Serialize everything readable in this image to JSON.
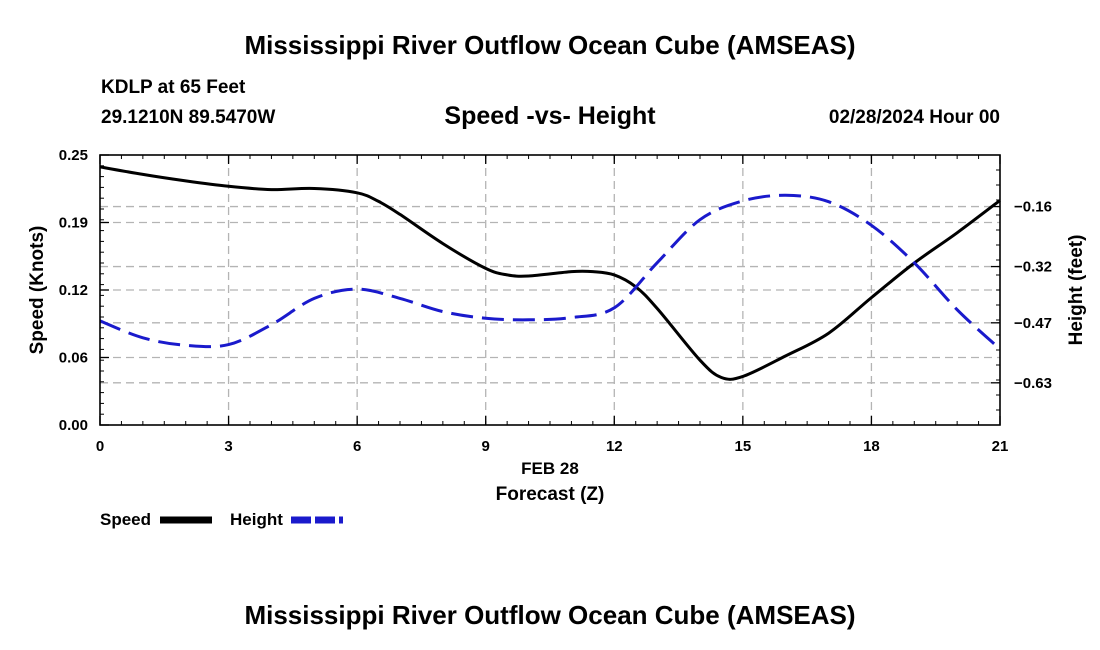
{
  "header": {
    "title_top": "Mississippi River Outflow Ocean Cube (AMSEAS)",
    "station": "KDLP at 65 Feet",
    "coords": "29.1210N  89.5470W",
    "chart_title": "Speed -vs- Height",
    "datetime": "02/28/2024 Hour 00",
    "title_bottom": "Mississippi River Outflow Ocean Cube (AMSEAS)"
  },
  "legend": {
    "speed_label": "Speed",
    "height_label": "Height"
  },
  "colors": {
    "speed": "#000000",
    "height": "#1a1acc",
    "grid": "#b4b4b4"
  },
  "chart_data": {
    "type": "line",
    "title": "Speed -vs- Height",
    "xlabel": "Forecast (Z)",
    "x_date_label": "FEB 28",
    "ylabel_left": "Speed (Knots)",
    "ylabel_right": "Height (feet)",
    "xlim": [
      0,
      21
    ],
    "ylim_left": [
      0.0,
      0.25
    ],
    "ylim_right": [
      -0.7425,
      -0.0225
    ],
    "x_ticks": [
      0,
      3,
      6,
      9,
      12,
      15,
      18,
      21
    ],
    "x_tick_labels": [
      "0",
      "3",
      "6",
      "9",
      "12",
      "15",
      "18",
      "21"
    ],
    "y_left_ticks": [
      0.0,
      0.0625,
      0.125,
      0.1875,
      0.25
    ],
    "y_left_tick_labels": [
      "0.00",
      "0.06",
      "0.12",
      "0.19",
      "0.25"
    ],
    "y_right_ticks": [
      -0.63,
      -0.47,
      -0.32,
      -0.16
    ],
    "y_right_tick_labels": [
      "−0.63",
      "−0.47",
      "−0.32",
      "−0.16"
    ],
    "series": [
      {
        "name": "Speed",
        "axis": "left",
        "style": "solid",
        "x": [
          0,
          1,
          2,
          3,
          4,
          5,
          6,
          6.5,
          7,
          8,
          9,
          9.5,
          10,
          11,
          11.5,
          12,
          12.5,
          13,
          14,
          14.5,
          15,
          16,
          17,
          18,
          19,
          20,
          21
        ],
        "values": [
          0.239,
          0.232,
          0.226,
          0.221,
          0.218,
          0.219,
          0.215,
          0.207,
          0.195,
          0.168,
          0.145,
          0.139,
          0.138,
          0.142,
          0.142,
          0.139,
          0.128,
          0.108,
          0.06,
          0.044,
          0.045,
          0.064,
          0.085,
          0.118,
          0.15,
          0.178,
          0.208
        ]
      },
      {
        "name": "Height",
        "axis": "right",
        "style": "dashed",
        "x": [
          0,
          1,
          2,
          3,
          4,
          5,
          6,
          7,
          8,
          9,
          10,
          11,
          12,
          13,
          14,
          15,
          16,
          17,
          18,
          19,
          20,
          21
        ],
        "values": [
          -0.465,
          -0.51,
          -0.53,
          -0.528,
          -0.475,
          -0.405,
          -0.38,
          -0.405,
          -0.44,
          -0.458,
          -0.462,
          -0.456,
          -0.43,
          -0.31,
          -0.195,
          -0.145,
          -0.13,
          -0.147,
          -0.21,
          -0.31,
          -0.435,
          -0.54
        ]
      }
    ]
  }
}
